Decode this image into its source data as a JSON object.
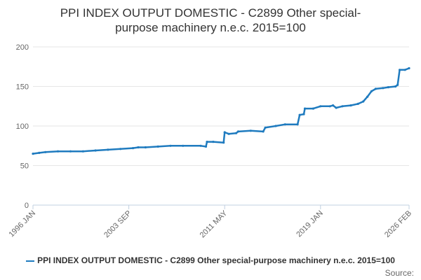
{
  "chart_data": {
    "type": "line",
    "title_lines": [
      "PPI INDEX OUTPUT DOMESTIC - C2899 Other special-",
      "purpose machinery n.e.c. 2015=100"
    ],
    "xlabel": "",
    "ylabel": "",
    "x_tick_labels": [
      "1996 JAN",
      "2003 SEP",
      "2011 MAY",
      "2019 JAN",
      "2026 FEB"
    ],
    "y_ticks": [
      0,
      50,
      100,
      150,
      200
    ],
    "ylim": [
      0,
      200
    ],
    "legend_label": "PPI INDEX OUTPUT DOMESTIC - C2899 Other special-purpose machinery n.e.c. 2015=100",
    "grid": true,
    "series": [
      {
        "name": "PPI INDEX OUTPUT DOMESTIC - C2899 Other special-purpose machinery n.e.c. 2015=100",
        "color": "#1f7bbf",
        "points": [
          [
            "1996-01",
            65
          ],
          [
            "1996-07",
            66
          ],
          [
            "1997-01",
            67
          ],
          [
            "1998-01",
            68
          ],
          [
            "1999-01",
            68
          ],
          [
            "2000-01",
            68
          ],
          [
            "2001-01",
            69
          ],
          [
            "2002-01",
            70
          ],
          [
            "2003-01",
            71
          ],
          [
            "2004-01",
            72
          ],
          [
            "2004-06",
            73
          ],
          [
            "2005-01",
            73
          ],
          [
            "2006-01",
            74
          ],
          [
            "2007-01",
            75
          ],
          [
            "2008-01",
            75
          ],
          [
            "2009-06",
            75
          ],
          [
            "2009-11",
            74
          ],
          [
            "2009-12",
            80
          ],
          [
            "2010-06",
            80
          ],
          [
            "2011-04",
            79
          ],
          [
            "2011-05",
            92
          ],
          [
            "2011-09",
            90
          ],
          [
            "2012-04",
            91
          ],
          [
            "2012-06",
            93
          ],
          [
            "2013-06",
            94
          ],
          [
            "2014-06",
            93
          ],
          [
            "2014-08",
            98
          ],
          [
            "2015-06",
            100
          ],
          [
            "2016-03",
            102
          ],
          [
            "2017-03",
            102
          ],
          [
            "2017-05",
            114
          ],
          [
            "2017-09",
            115
          ],
          [
            "2017-10",
            122
          ],
          [
            "2018-06",
            122
          ],
          [
            "2019-01",
            125
          ],
          [
            "2019-10",
            125
          ],
          [
            "2020-01",
            126
          ],
          [
            "2020-04",
            123
          ],
          [
            "2020-10",
            125
          ],
          [
            "2021-06",
            126
          ],
          [
            "2022-01",
            128
          ],
          [
            "2022-06",
            131
          ],
          [
            "2022-10",
            137
          ],
          [
            "2023-02",
            144
          ],
          [
            "2023-06",
            147
          ],
          [
            "2024-01",
            148
          ],
          [
            "2024-06",
            149
          ],
          [
            "2025-01",
            150
          ],
          [
            "2025-03",
            152
          ],
          [
            "2025-05",
            171
          ],
          [
            "2025-10",
            171
          ],
          [
            "2026-02",
            173
          ]
        ]
      }
    ]
  },
  "source_label": "Source:"
}
